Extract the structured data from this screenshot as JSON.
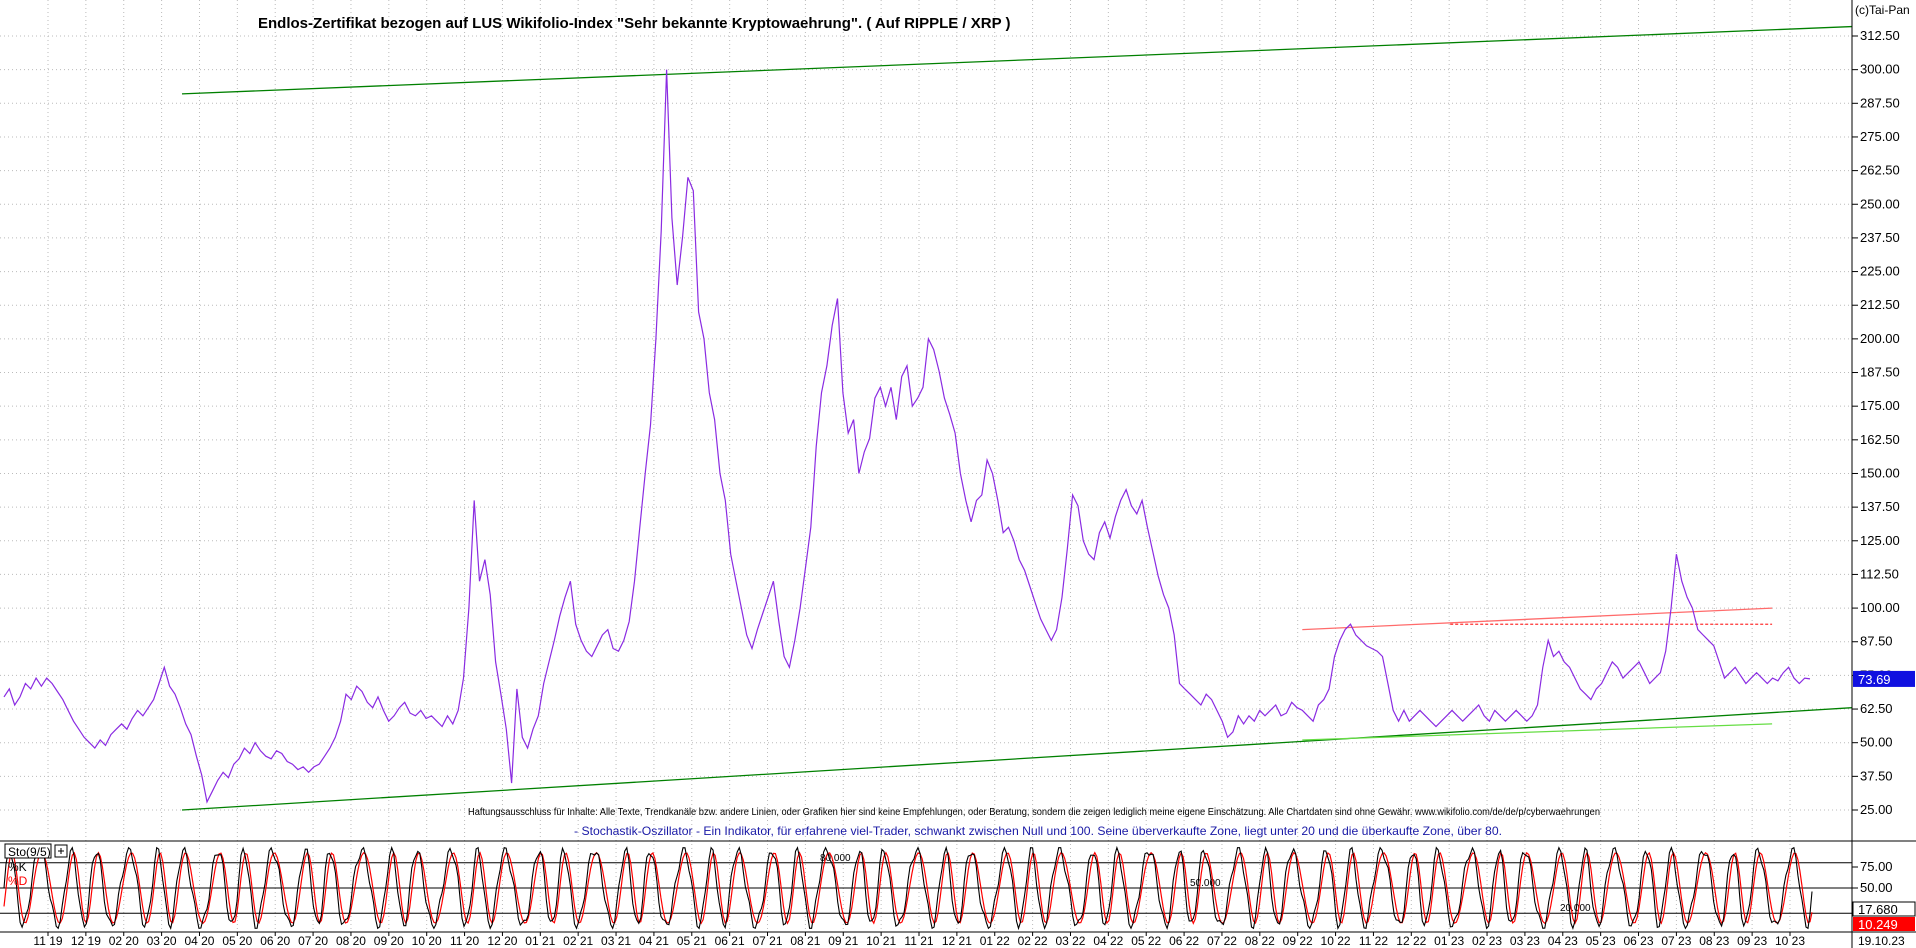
{
  "chart_data": [
    {
      "type": "line",
      "title": "Endlos-Zertifikat bezogen auf LUS Wikifolio-Index \"Sehr bekannte Kryptowaehrung\". ( Auf RIPPLE / XRP )",
      "copyright": "(c)Tai-Pan",
      "disclaimer": "Haftungsausschluss für Inhalte: Alle Texte, Trendkanäle bzw. andere Linien, oder Grafiken hier sind keine Empfehlungen, oder Beratung, sondern die zeigen lediglich meine eigene Einschätzung. Alle Chartdaten sind ohne Gewähr.  www.wikifolio.com/de/de/p/cyberwaehrungen",
      "y_ticks": [
        "312.50",
        "300.00",
        "287.50",
        "275.00",
        "262.50",
        "250.00",
        "237.50",
        "225.00",
        "212.50",
        "200.00",
        "187.50",
        "175.00",
        "162.50",
        "150.00",
        "137.50",
        "125.00",
        "112.50",
        "100.00",
        "87.50",
        "75.00",
        "62.50",
        "50.00",
        "37.50",
        "25.00"
      ],
      "ylim": [
        22,
        319
      ],
      "last_value_label": "73.69",
      "last_value": 73.69,
      "grid": true,
      "series": [
        {
          "color": "#8a2be2",
          "values": [
            67,
            70,
            64,
            67,
            72,
            70,
            74,
            71,
            74,
            72,
            69,
            66,
            62,
            58,
            55,
            52,
            50,
            48,
            51,
            49,
            53,
            55,
            57,
            55,
            59,
            62,
            60,
            63,
            66,
            72,
            78,
            71,
            68,
            63,
            57,
            53,
            45,
            38,
            28,
            32,
            36,
            39,
            37,
            42,
            44,
            48,
            46,
            50,
            47,
            45,
            44,
            47,
            46,
            43,
            42,
            40,
            41,
            39,
            41,
            42,
            45,
            48,
            52,
            58,
            68,
            66,
            71,
            69,
            65,
            63,
            67,
            62,
            58,
            60,
            63,
            65,
            61,
            60,
            62,
            59,
            60,
            58,
            56,
            60,
            57,
            62,
            74,
            100,
            140,
            110,
            118,
            105,
            80,
            68,
            55,
            35,
            70,
            52,
            48,
            55,
            60,
            72,
            80,
            88,
            97,
            104,
            110,
            94,
            88,
            84,
            82,
            86,
            90,
            92,
            85,
            84,
            88,
            95,
            110,
            130,
            150,
            168,
            200,
            240,
            300,
            245,
            220,
            238,
            260,
            255,
            210,
            200,
            180,
            170,
            150,
            140,
            120,
            110,
            100,
            90,
            85,
            92,
            98,
            104,
            110,
            95,
            82,
            78,
            88,
            100,
            115,
            130,
            160,
            180,
            190,
            205,
            215,
            180,
            165,
            170,
            150,
            158,
            163,
            178,
            182,
            175,
            182,
            170,
            186,
            190,
            175,
            178,
            182,
            200,
            196,
            188,
            178,
            172,
            165,
            150,
            140,
            132,
            140,
            142,
            155,
            150,
            140,
            128,
            130,
            125,
            118,
            114,
            108,
            102,
            96,
            92,
            88,
            92,
            104,
            122,
            142,
            138,
            125,
            120,
            118,
            128,
            132,
            126,
            134,
            140,
            144,
            138,
            135,
            140,
            130,
            121,
            112,
            105,
            100,
            90,
            72,
            70,
            68,
            66,
            64,
            68,
            66,
            62,
            58,
            52,
            54,
            60,
            57,
            60,
            58,
            62,
            60,
            62,
            64,
            60,
            61,
            65,
            63,
            62,
            60,
            58,
            64,
            66,
            70,
            82,
            88,
            92,
            94,
            90,
            88,
            86,
            85,
            84,
            82,
            72,
            62,
            58,
            62,
            58,
            60,
            62,
            60,
            58,
            56,
            58,
            60,
            62,
            60,
            58,
            60,
            62,
            64,
            60,
            58,
            62,
            60,
            58,
            60,
            62,
            60,
            58,
            60,
            64,
            78,
            88,
            82,
            84,
            80,
            78,
            74,
            70,
            68,
            66,
            70,
            72,
            76,
            80,
            78,
            74,
            76,
            78,
            80,
            76,
            72,
            74,
            76,
            84,
            100,
            120,
            110,
            104,
            100,
            92,
            90,
            88,
            86,
            80,
            74,
            76,
            78,
            75,
            72,
            74,
            76,
            74,
            72,
            74,
            73,
            76,
            78,
            74,
            72,
            74,
            73.69
          ]
        }
      ],
      "trendlines": [
        {
          "color": "#008000",
          "from": [
            0,
            291
          ],
          "to": [
            1,
            316
          ]
        },
        {
          "color": "#008000",
          "from": [
            0,
            25
          ],
          "to": [
            1,
            63
          ]
        },
        {
          "color": "#ff6b6b",
          "from": [
            0.645,
            92
          ],
          "to": [
            0.915,
            100
          ]
        },
        {
          "color": "#ff3333",
          "dashed": true,
          "from": [
            0.73,
            94
          ],
          "to": [
            0.915,
            94
          ]
        },
        {
          "color": "#66dd44",
          "from": [
            0.645,
            51
          ],
          "to": [
            0.915,
            57
          ]
        }
      ]
    },
    {
      "type": "line",
      "title": "- Stochastik-Oszillator - Ein Indikator, für erfahrene viel-Trader, schwankt zwischen Null und 100. Seine überverkaufte Zone, liegt unter 20 und die überkaufte Zone, über 80.",
      "indicator_label": "Sto(9/5)",
      "legend": [
        {
          "name": "%K",
          "color": "#000000"
        },
        {
          "name": "%D",
          "color": "#ff0000"
        }
      ],
      "y_ticks": [
        "75.00",
        "50.00"
      ],
      "ylim": [
        0,
        100
      ],
      "levels": [
        {
          "value": 80,
          "label": "80.000"
        },
        {
          "value": 50,
          "label": "50.000"
        },
        {
          "value": 20,
          "label": "20.000"
        }
      ],
      "last_k_label": "17.680",
      "last_d_label": "10.249",
      "cycles": 62
    }
  ],
  "x_axis": {
    "labels": [
      "11 19",
      "12 19",
      "02 20",
      "03 20",
      "04 20",
      "05 20",
      "06 20",
      "07 20",
      "08 20",
      "09 20",
      "10 20",
      "11 20",
      "12 20",
      "01 21",
      "02 21",
      "03 21",
      "04 21",
      "05 21",
      "06 21",
      "07 21",
      "08 21",
      "09 21",
      "10 21",
      "11 21",
      "12 21",
      "01 22",
      "02 22",
      "03 22",
      "04 22",
      "05 22",
      "06 22",
      "07 22",
      "08 22",
      "09 22",
      "10 22",
      "11 22",
      "12 22",
      "01 23",
      "02 23",
      "03 23",
      "04 23",
      "05 23",
      "06 23",
      "07 23",
      "08 23",
      "09 23",
      "10 23"
    ],
    "date_label": "19.10.23"
  },
  "colors": {
    "price": "#8a2be2",
    "trend": "#008000",
    "k": "#000000",
    "d": "#ff0000",
    "last_value_bg": "#1010e0",
    "last_d_bg": "#ff0000"
  }
}
